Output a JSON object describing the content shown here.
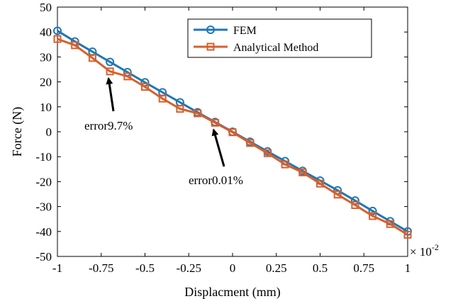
{
  "chart_data": {
    "type": "line",
    "xlabel": "Displacment (mm)",
    "ylabel": "Force (N)",
    "x_exponent_label": "× 10",
    "x_exponent_power": "-2",
    "xlim": [
      -1,
      1
    ],
    "ylim": [
      -50,
      50
    ],
    "x_ticks": [
      -1,
      -0.75,
      -0.5,
      -0.25,
      0,
      0.25,
      0.5,
      0.75,
      1
    ],
    "x_tick_labels": [
      "-1",
      "-0.75",
      "-0.5",
      "-0.25",
      "0",
      "0.25",
      "0.5",
      "0.75",
      "1"
    ],
    "y_ticks": [
      -50,
      -40,
      -30,
      -20,
      -10,
      0,
      10,
      20,
      30,
      40,
      50
    ],
    "y_tick_labels": [
      "-50",
      "-40",
      "-30",
      "-20",
      "-10",
      "0",
      "10",
      "20",
      "30",
      "40",
      "50"
    ],
    "grid": false,
    "legend_position": "top-right",
    "x": [
      -1,
      -0.9,
      -0.8,
      -0.7,
      -0.6,
      -0.5,
      -0.4,
      -0.3,
      -0.2,
      -0.1,
      0,
      0.1,
      0.2,
      0.3,
      0.4,
      0.5,
      0.6,
      0.7,
      0.8,
      0.9,
      1
    ],
    "series": [
      {
        "name": "FEM",
        "color": "#1f77b4",
        "marker": "circle",
        "values": [
          40.5,
          36.2,
          32.1,
          28.0,
          23.9,
          19.8,
          15.8,
          11.8,
          7.8,
          3.9,
          0,
          -4.0,
          -7.9,
          -11.8,
          -15.7,
          -19.6,
          -23.5,
          -27.6,
          -31.8,
          -35.9,
          -40.0
        ]
      },
      {
        "name": "Analytical Method",
        "color": "#d95f2b",
        "marker": "square",
        "values": [
          37.2,
          34.7,
          29.6,
          24.2,
          22.2,
          18.0,
          13.3,
          9.2,
          7.4,
          3.6,
          -0.2,
          -4.5,
          -8.6,
          -13.1,
          -16.3,
          -20.8,
          -25.2,
          -29.4,
          -33.8,
          -37.0,
          -41.3
        ]
      }
    ],
    "annotations": [
      {
        "text": "error9.7%",
        "x": -0.7,
        "y": 24.2
      },
      {
        "text": "error0.01%",
        "x": -0.1,
        "y": 3.6
      }
    ]
  }
}
